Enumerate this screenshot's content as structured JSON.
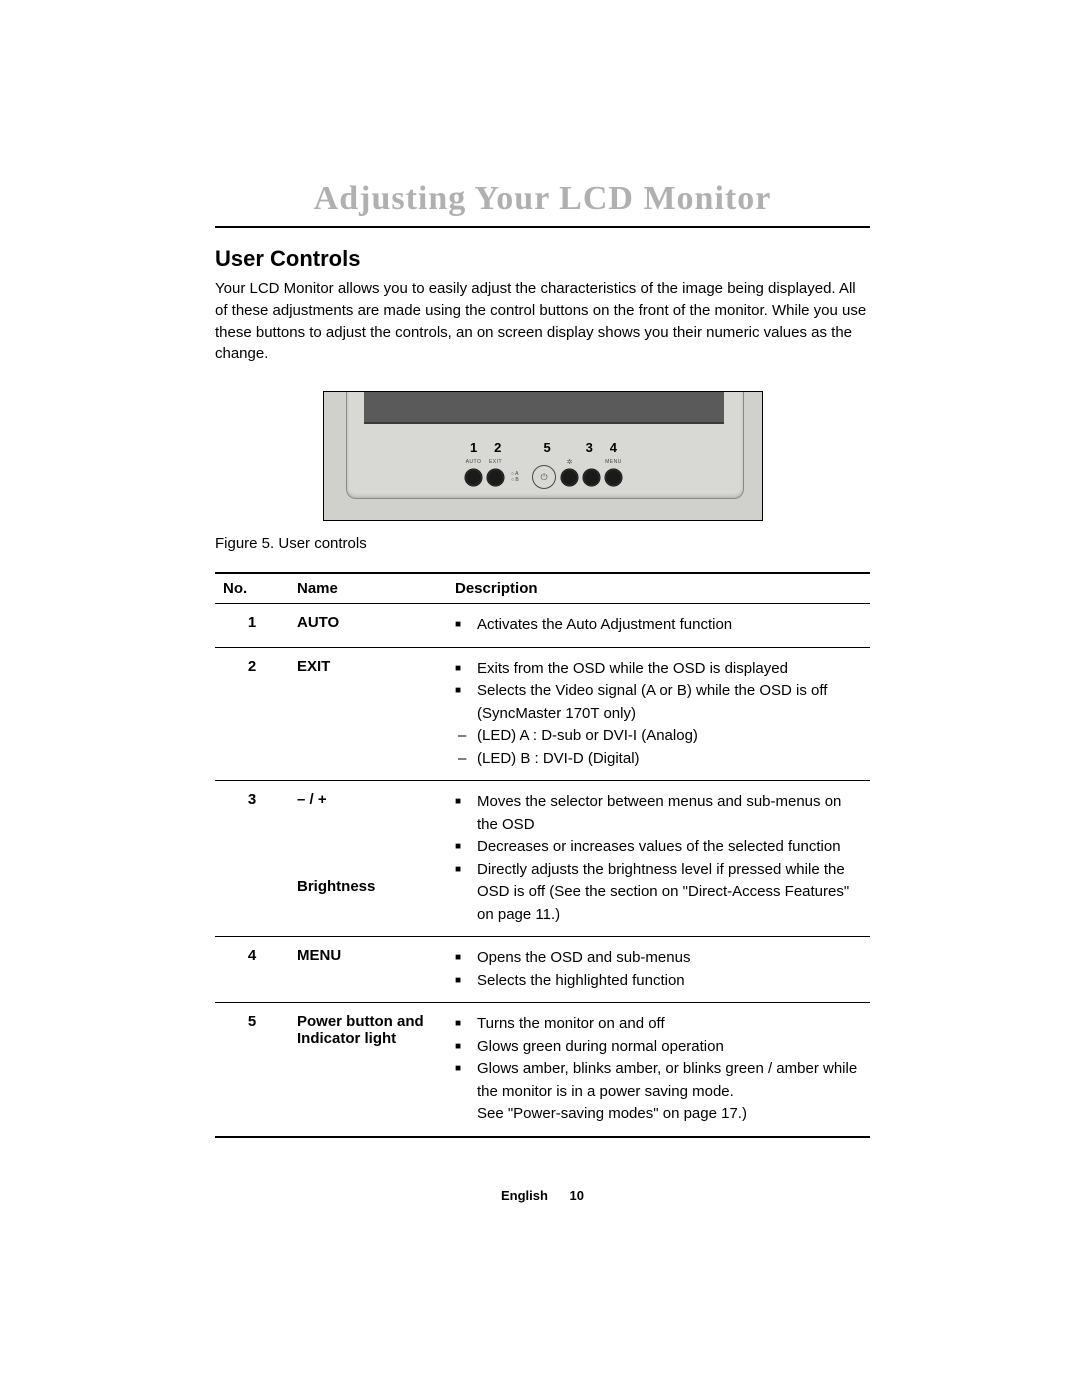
{
  "title": "Adjusting Your LCD Monitor",
  "section": "User Controls",
  "intro": "Your LCD Monitor allows you to easily adjust the characteristics of the image being displayed. All of these adjustments are made using the control buttons on the front of the monitor. While you use these buttons to adjust the controls, an on screen display shows you their numeric values as the change.",
  "figure": {
    "numbers": [
      "1",
      "2",
      "",
      "5",
      "",
      "3",
      "4"
    ],
    "labels": {
      "b1": "AUTO",
      "b2": "EXIT",
      "ab_a": "○ A",
      "ab_b": "○ B",
      "pwr": "⏻",
      "menu": "MENU"
    },
    "caption": "Figure 5. User controls"
  },
  "table": {
    "headers": {
      "no": "No.",
      "name": "Name",
      "desc": "Description"
    },
    "rows": [
      {
        "no": "1",
        "name_html": "AUTO",
        "items": [
          {
            "type": "sq",
            "text": "Activates the Auto Adjustment function"
          }
        ]
      },
      {
        "no": "2",
        "name_html": "EXIT",
        "items": [
          {
            "type": "sq",
            "text": "Exits from the OSD  while the OSD is displayed"
          },
          {
            "type": "sq",
            "text": "Selects the Video signal (A or B) while the OSD is off (SyncMaster 170T only)"
          },
          {
            "type": "dash",
            "text": "(LED)  A : D-sub or DVI-I (Analog)"
          },
          {
            "type": "dash",
            "text": "(LED)  B :  DVI-D (Digital)"
          }
        ]
      },
      {
        "no": "3",
        "name_html": "– / +",
        "name_sub": "Brightness",
        "items": [
          {
            "type": "sq",
            "text": "Moves the selector between menus and sub-menus on the OSD"
          },
          {
            "type": "sq",
            "text": "Decreases or increases values of the selected function"
          },
          {
            "type": "sq",
            "text": "Directly adjusts the brightness level if pressed while the OSD is off (See the section on \"Direct-Access Features\" on page 11.)"
          }
        ]
      },
      {
        "no": "4",
        "name_html": "MENU",
        "items": [
          {
            "type": "sq",
            "text": "Opens the OSD and sub-menus"
          },
          {
            "type": "sq",
            "text": "Selects the highlighted function"
          }
        ]
      },
      {
        "no": "5",
        "name_html": "Power button and Indicator light",
        "items": [
          {
            "type": "sq",
            "text": "Turns the monitor on and off"
          },
          {
            "type": "sq",
            "text": "Glows green during normal operation"
          },
          {
            "type": "sq",
            "text": "Glows amber, blinks amber, or blinks green / amber while the monitor is in a power saving mode."
          }
        ],
        "note": "See \"Power-saving modes\" on page 17.)"
      }
    ]
  },
  "footer": {
    "lang": "English",
    "page": "10"
  },
  "colors": {
    "title_gray": "#b0b0b0",
    "bezel": "#d8d8d5",
    "screen": "#5a5a5a",
    "btn": "#1a1a1a"
  }
}
